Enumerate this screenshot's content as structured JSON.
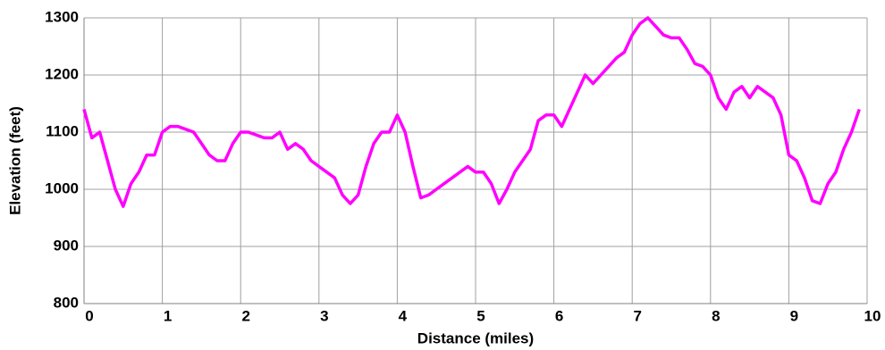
{
  "chart_data": {
    "type": "line",
    "x_label": "Distance (miles)",
    "y_label": "Elevation (feet)",
    "x": [
      0,
      0.1,
      0.2,
      0.3,
      0.4,
      0.5,
      0.6,
      0.7,
      0.8,
      0.9,
      1,
      1.1,
      1.2,
      1.3,
      1.4,
      1.5,
      1.6,
      1.7,
      1.8,
      1.9,
      2,
      2.1,
      2.2,
      2.3,
      2.4,
      2.5,
      2.6,
      2.7,
      2.8,
      2.9,
      3,
      3.1,
      3.2,
      3.3,
      3.4,
      3.5,
      3.6,
      3.7,
      3.8,
      3.9,
      4,
      4.1,
      4.2,
      4.3,
      4.4,
      4.5,
      4.6,
      4.7,
      4.8,
      4.9,
      5,
      5.1,
      5.2,
      5.3,
      5.4,
      5.5,
      5.6,
      5.7,
      5.8,
      5.9,
      6,
      6.1,
      6.2,
      6.3,
      6.4,
      6.5,
      6.6,
      6.7,
      6.8,
      6.9,
      7,
      7.1,
      7.2,
      7.3,
      7.4,
      7.5,
      7.6,
      7.7,
      7.8,
      7.9,
      8,
      8.1,
      8.2,
      8.3,
      8.4,
      8.5,
      8.6,
      8.7,
      8.8,
      8.9,
      9,
      9.1,
      9.2,
      9.3,
      9.4,
      9.5,
      9.6,
      9.7,
      9.8,
      9.9
    ],
    "series": [
      {
        "name": "Elevation",
        "color": "#ff00ff",
        "values": [
          1140,
          1090,
          1100,
          1050,
          1000,
          970,
          1010,
          1030,
          1060,
          1060,
          1100,
          1110,
          1110,
          1105,
          1100,
          1080,
          1060,
          1050,
          1050,
          1080,
          1100,
          1100,
          1095,
          1090,
          1090,
          1100,
          1070,
          1080,
          1070,
          1050,
          1040,
          1030,
          1020,
          990,
          975,
          990,
          1040,
          1080,
          1100,
          1100,
          1130,
          1100,
          1040,
          985,
          990,
          1000,
          1010,
          1020,
          1030,
          1040,
          1030,
          1030,
          1010,
          975,
          1000,
          1030,
          1050,
          1070,
          1120,
          1130,
          1130,
          1110,
          1140,
          1170,
          1200,
          1185,
          1200,
          1215,
          1230,
          1240,
          1270,
          1290,
          1300,
          1285,
          1270,
          1265,
          1265,
          1245,
          1220,
          1215,
          1200,
          1160,
          1140,
          1170,
          1180,
          1160,
          1180,
          1170,
          1160,
          1130,
          1060,
          1050,
          1020,
          980,
          975,
          1010,
          1030,
          1070,
          1100,
          1140
        ]
      }
    ],
    "xlim": [
      0,
      10
    ],
    "xticks": [
      0,
      1,
      2,
      3,
      4,
      5,
      6,
      7,
      8,
      9,
      10
    ],
    "ylim": [
      800,
      1300
    ],
    "yticks": [
      800,
      900,
      1000,
      1100,
      1200,
      1300
    ],
    "grid": true
  }
}
